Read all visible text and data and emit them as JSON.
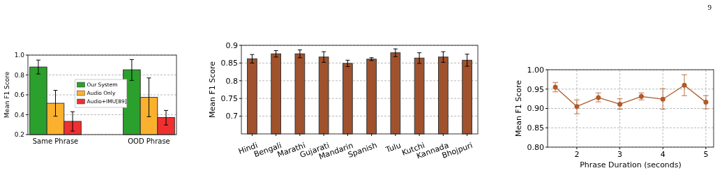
{
  "chart_data": [
    {
      "type": "bar",
      "categories": [
        "Same Phrase",
        "OOD Phrase"
      ],
      "ylabel": "Mean F1 Score",
      "ylim": [
        0.2,
        1.0
      ],
      "yticks": [
        0.2,
        0.4,
        0.6,
        0.8,
        {
          "value": 1.0,
          "label": "1.0"
        }
      ],
      "grid": "y",
      "legend": "center",
      "series": [
        {
          "name": "Our System",
          "color": "#2ca02c",
          "values": [
            0.88,
            0.852
          ],
          "errors": [
            [
              0.81,
              0.95
            ],
            [
              0.745,
              0.955
            ]
          ]
        },
        {
          "name": "Audio Only",
          "color": "#fbb12e",
          "values": [
            0.515,
            0.575
          ],
          "errors": [
            [
              0.385,
              0.645
            ],
            [
              0.38,
              0.77
            ]
          ]
        },
        {
          "name": "Audio+IMU[89]",
          "color": "#f03030",
          "values": [
            0.333,
            0.372
          ],
          "errors": [
            [
              0.235,
              0.43
            ],
            [
              0.297,
              0.443
            ]
          ]
        }
      ]
    },
    {
      "type": "bar",
      "categories": [
        "Hindi",
        "Bengali",
        "Marathi",
        "Gujarati",
        "Mandarin",
        "Spanish",
        "Tulu",
        "Kutchi",
        "Kannada",
        "Bhojpuri"
      ],
      "ylabel": "Mean F1 Score",
      "ylim": [
        0.65,
        0.9
      ],
      "yticks": [
        0.7,
        0.75,
        0.8,
        0.85,
        0.9
      ],
      "grid": "y",
      "series": [
        {
          "color": "#a0522d",
          "values": [
            0.862,
            0.876,
            0.876,
            0.867,
            0.849,
            0.861,
            0.879,
            0.864,
            0.867,
            0.858
          ],
          "errors": [
            0.012,
            0.009,
            0.011,
            0.015,
            0.009,
            0.004,
            0.011,
            0.015,
            0.015,
            0.017
          ]
        }
      ]
    },
    {
      "type": "line",
      "xlabel": "Phrase Duration (seconds)",
      "ylabel": "Mean F1 Score",
      "xlim": [
        1.32,
        5.18
      ],
      "xticks": [
        2,
        3,
        4,
        5
      ],
      "ylim": [
        0.8,
        1.0
      ],
      "yticks": [
        {
          "value": 0.8,
          "label": "0.80"
        },
        {
          "value": 0.85,
          "label": "0.85"
        },
        {
          "value": 0.9,
          "label": "0.90"
        },
        {
          "value": 0.95,
          "label": "0.95"
        },
        {
          "value": 1.0,
          "label": "1.00"
        }
      ],
      "grid": true,
      "marker": "circle",
      "annotations": [
        "9"
      ],
      "series": [
        {
          "color": "#b05a28",
          "x": [
            1.5,
            2,
            2.5,
            3,
            3.5,
            4,
            4.5,
            5
          ],
          "values": [
            0.955,
            0.905,
            0.928,
            0.911,
            0.931,
            0.924,
            0.96,
            0.916
          ],
          "errors": [
            [
              0.943,
              0.967
            ],
            [
              0.886,
              0.922
            ],
            [
              0.917,
              0.94
            ],
            [
              0.898,
              0.925
            ],
            [
              0.922,
              0.94
            ],
            [
              0.898,
              0.951
            ],
            [
              0.933,
              0.987
            ],
            [
              0.899,
              0.933
            ]
          ]
        }
      ]
    }
  ]
}
